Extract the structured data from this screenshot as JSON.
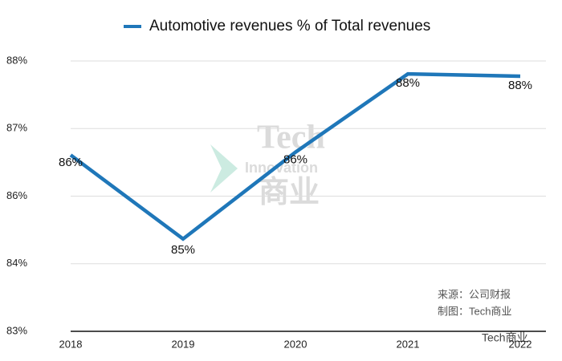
{
  "chart_data": {
    "type": "line",
    "categories": [
      "2018",
      "2019",
      "2020",
      "2021",
      "2022"
    ],
    "series": [
      {
        "name": "Automotive revenues % of  Total revenues",
        "color": "#1f77b9",
        "values": [
          86.33,
          84.84,
          86.38,
          87.77,
          87.73
        ],
        "value_labels": [
          "86%",
          "85%",
          "86%",
          "88%",
          "88%"
        ]
      }
    ],
    "ylim": [
      83.2,
      88.0
    ],
    "yticks": [
      {
        "value": 83.2,
        "label": "83%"
      },
      {
        "value": 84.4,
        "label": "84%"
      },
      {
        "value": 85.6,
        "label": "86%"
      },
      {
        "value": 86.8,
        "label": "87%"
      },
      {
        "value": 88.0,
        "label": "88%"
      }
    ],
    "grid": true,
    "annotations": [
      "来源：公司财报",
      "制图：Tech商业",
      "Tech",
      "Innovation",
      "商业",
      "Tech商业"
    ]
  }
}
